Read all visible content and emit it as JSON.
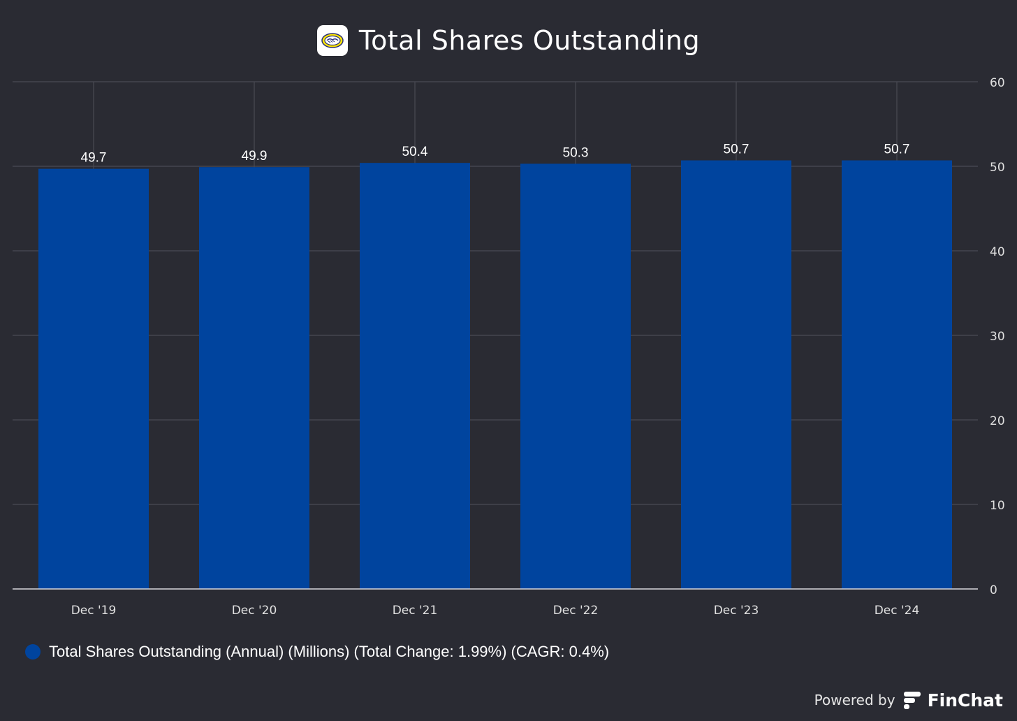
{
  "header": {
    "title": "Total Shares Outstanding",
    "logo_icon": "handshake-logo-icon"
  },
  "colors": {
    "background": "#2a2b33",
    "bar": "#00449e",
    "grid": "#4a4b54",
    "axis_text": "#e0e0e0"
  },
  "chart_data": {
    "type": "bar",
    "title": "Total Shares Outstanding",
    "categories": [
      "Dec '19",
      "Dec '20",
      "Dec '21",
      "Dec '22",
      "Dec '23",
      "Dec '24"
    ],
    "series": [
      {
        "name": "Total Shares Outstanding (Annual) (Millions) (Total Change: 1.99%) (CAGR: 0.4%)",
        "values": [
          49.7,
          49.9,
          50.4,
          50.3,
          50.7,
          50.7
        ]
      }
    ],
    "data_labels": [
      "49.7",
      "49.9",
      "50.4",
      "50.3",
      "50.7",
      "50.7"
    ],
    "y_ticks": [
      "0",
      "10",
      "20",
      "30",
      "40",
      "50",
      "60"
    ],
    "ylim": [
      0,
      60
    ],
    "y_axis_side": "right",
    "grid": true,
    "legend_position": "bottom-left"
  },
  "legend": {
    "label": "Total Shares Outstanding (Annual) (Millions) (Total Change: 1.99%) (CAGR: 0.4%)"
  },
  "footer": {
    "powered_by": "Powered by",
    "brand": "FinChat",
    "brand_icon": "finchat-logo-icon"
  }
}
